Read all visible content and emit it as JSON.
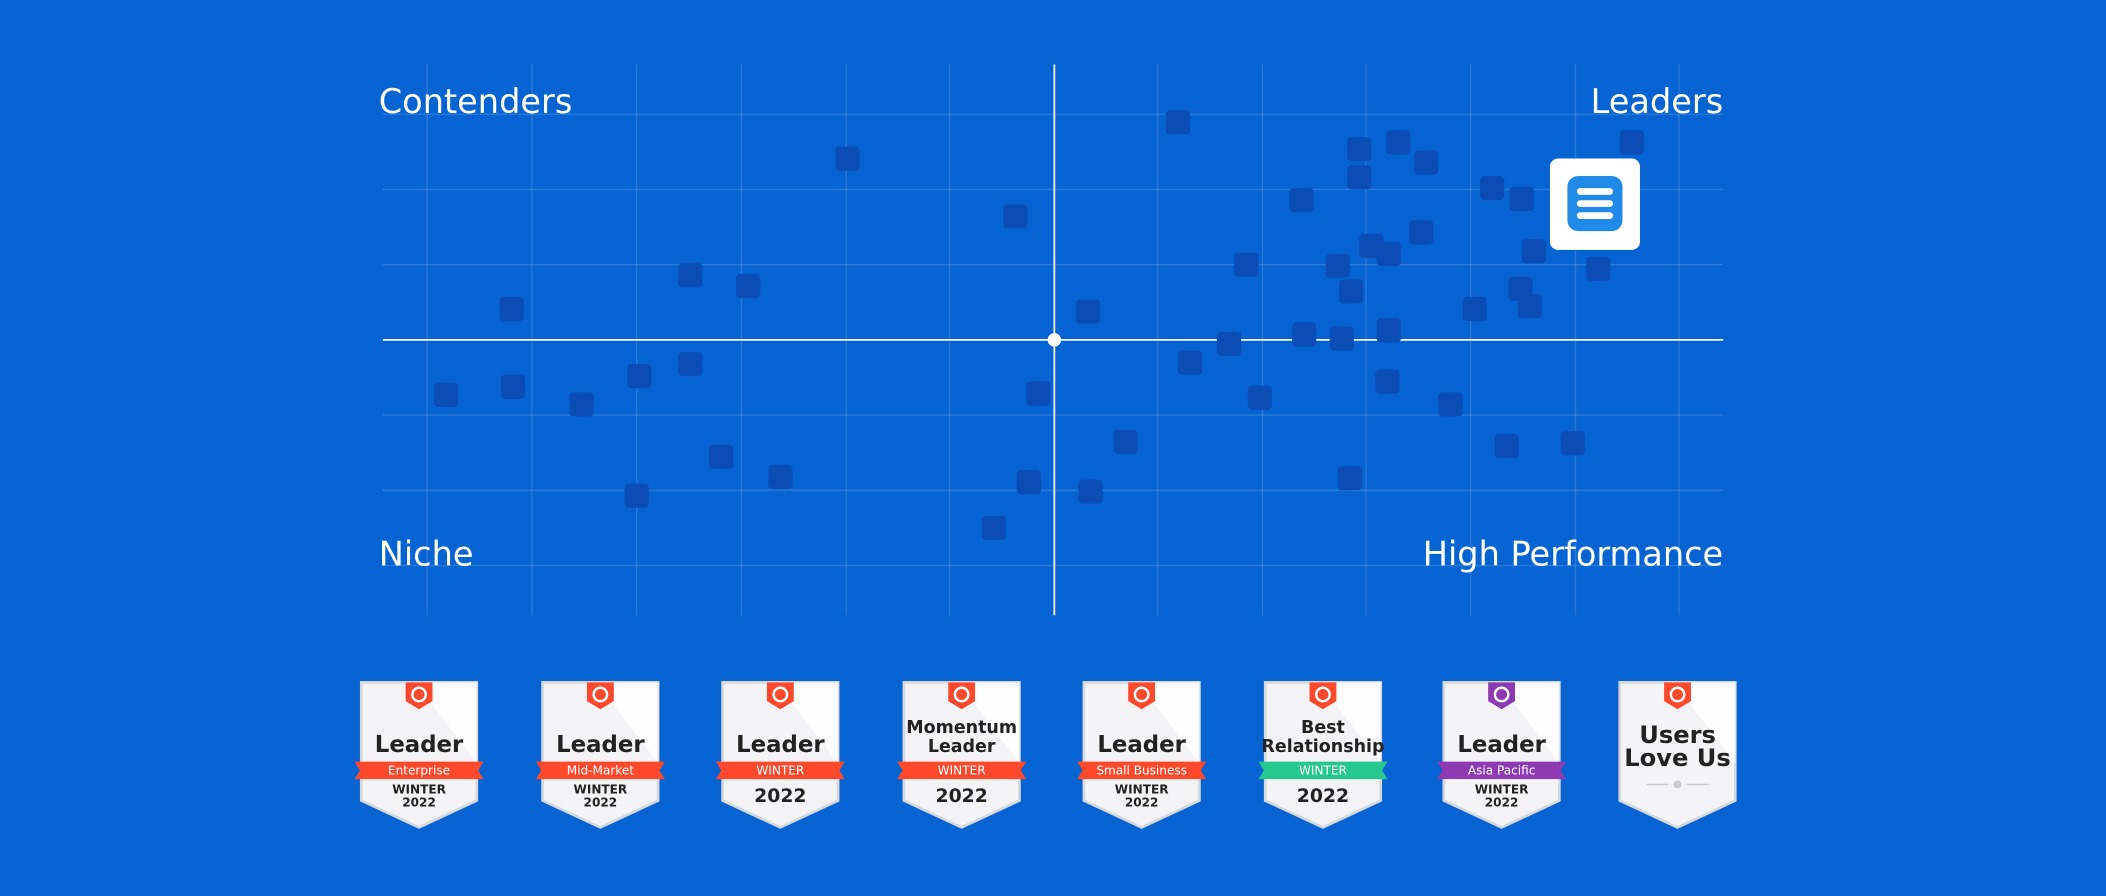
{
  "quadrants": {
    "top_left": "Contenders",
    "top_right": "Leaders",
    "bottom_left": "Niche",
    "bottom_right": "High Performance"
  },
  "badges": [
    {
      "title": [
        "Leader"
      ],
      "ribbon": "Enterprise",
      "ribbon_color": "#ff492c",
      "tab_color": "#ff492c",
      "footer": [
        "WINTER",
        "2022"
      ]
    },
    {
      "title": [
        "Leader"
      ],
      "ribbon": "Mid-Market",
      "ribbon_color": "#ff492c",
      "tab_color": "#ff492c",
      "footer": [
        "WINTER",
        "2022"
      ]
    },
    {
      "title": [
        "Leader"
      ],
      "ribbon": "WINTER",
      "ribbon_color": "#ff492c",
      "tab_color": "#ff492c",
      "footer": [
        "2022"
      ]
    },
    {
      "title": [
        "Momentum",
        "Leader"
      ],
      "ribbon": "WINTER",
      "ribbon_color": "#ff492c",
      "tab_color": "#ff492c",
      "footer": [
        "2022"
      ]
    },
    {
      "title": [
        "Leader"
      ],
      "ribbon": "Small Business",
      "ribbon_color": "#ff492c",
      "tab_color": "#ff492c",
      "footer": [
        "WINTER",
        "2022"
      ]
    },
    {
      "title": [
        "Best",
        "Relationship"
      ],
      "ribbon": "WINTER",
      "ribbon_color": "#27c88f",
      "tab_color": "#ff492c",
      "footer": [
        "2022"
      ]
    },
    {
      "title": [
        "Leader"
      ],
      "ribbon": "Asia Pacific",
      "ribbon_color": "#8e3ab2",
      "tab_color": "#8e3ab2",
      "footer": [
        "WINTER",
        "2022"
      ]
    },
    {
      "title": [
        "Users",
        "Love Us"
      ],
      "tab_color": "#ff492c"
    }
  ]
}
